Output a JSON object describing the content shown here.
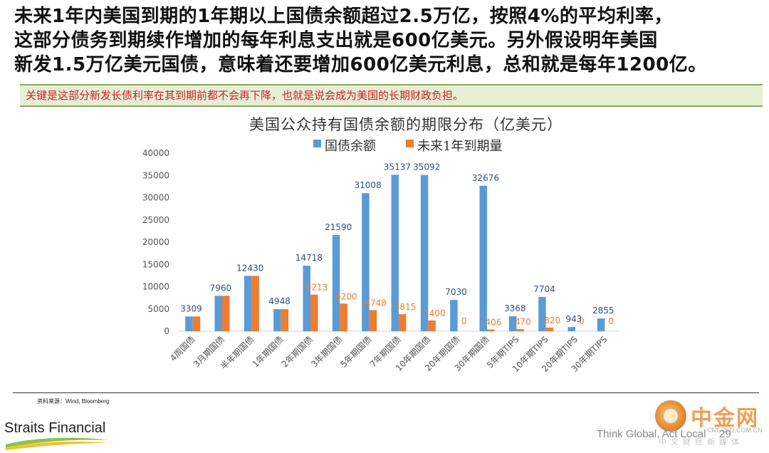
{
  "headline": {
    "line1": "未来1年内美国到期的1年期以上国债余额超过2.5万亿，按照4%的平均利率，",
    "line2": "这部分债务到期续作增加的每年利息支出就是600亿美元。另外假设明年美国",
    "line3": "新发1.5万亿美元国债，意味着还要增加600亿美元利息，总和就是每年1200亿。"
  },
  "callout": "关键是这部分新发长债利率在其到期前都不会再下降，也就是说会成为美国的长期财政负担。",
  "chart_data": {
    "type": "bar",
    "title": "美国公众持有国债余额的期限分布（亿美元）",
    "legend_position": "top",
    "categories": [
      "4周国债",
      "3月期国债",
      "半年期国债",
      "1年期国债",
      "2年期国债",
      "3年期国债",
      "5年期国债",
      "7年期国债",
      "10年期国债",
      "20年期国债",
      "30年期国债",
      "5年期TIPS",
      "10年期TIPS",
      "20年期TIPS",
      "30年期TIPS"
    ],
    "series": [
      {
        "name": "国债余额",
        "color": "#5b9bd5",
        "values": [
          3309,
          7960,
          12430,
          4948,
          14718,
          21590,
          31008,
          35137,
          35092,
          7030,
          32676,
          3368,
          7704,
          943,
          2855
        ]
      },
      {
        "name": "未来1年到期量",
        "color": "#ed7d31",
        "values": [
          3309,
          7960,
          12430,
          4948,
          8213,
          6200,
          4748,
          3815,
          2400,
          0,
          406,
          470,
          820,
          0,
          0
        ]
      }
    ],
    "data_labels": {
      "series_a": [
        "3309",
        "7960",
        "12430",
        "4948",
        "14718",
        "21590",
        "31008",
        "35137",
        "35092",
        "7030",
        "32676",
        "3368",
        "7704",
        "943",
        "2855"
      ],
      "series_b": [
        "",
        "",
        "",
        "",
        "8213",
        "6200",
        "4748",
        "3815",
        "2400",
        "0",
        "406",
        "470",
        "820",
        "0",
        "0"
      ]
    },
    "ylim": [
      0,
      40000
    ],
    "yticks": [
      0,
      5000,
      10000,
      15000,
      20000,
      25000,
      30000,
      35000,
      40000
    ],
    "grid": false,
    "xlabel": "",
    "ylabel": ""
  },
  "source": "资料来源：Wind, Bloomberg",
  "footer": {
    "brand": "Straits Financial",
    "slogan": "Think Global, Act Local",
    "page": "29"
  },
  "watermark": {
    "name": "中金网",
    "url": "CNGOLD.COM.CN",
    "subtitle": "中文财经新媒体"
  }
}
